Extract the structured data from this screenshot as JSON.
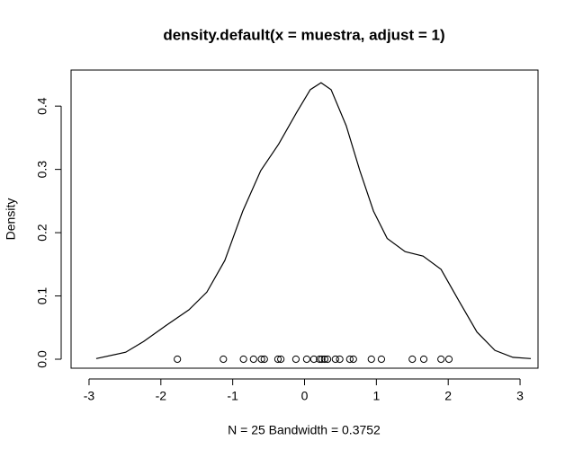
{
  "chart_data": {
    "type": "line",
    "title": "density.default(x = muestra, adjust = 1)",
    "xlabel": "N = 25   Bandwidth = 0.3752",
    "ylabel": "Density",
    "x": [
      -2.9,
      -2.49,
      -2.24,
      -1.92,
      -1.61,
      -1.36,
      -1.11,
      -0.86,
      -0.61,
      -0.36,
      -0.11,
      0.08,
      0.23,
      0.37,
      0.58,
      0.77,
      0.96,
      1.15,
      1.4,
      1.65,
      1.9,
      2.15,
      2.4,
      2.65,
      2.9,
      3.15
    ],
    "values": [
      0.001,
      0.011,
      0.028,
      0.054,
      0.078,
      0.106,
      0.156,
      0.234,
      0.298,
      0.34,
      0.39,
      0.426,
      0.437,
      0.426,
      0.369,
      0.298,
      0.234,
      0.191,
      0.17,
      0.163,
      0.142,
      0.092,
      0.043,
      0.014,
      0.003,
      0.001
    ],
    "color": "#000000",
    "points": {
      "x": [
        -1.77,
        -1.13,
        -0.85,
        -0.71,
        -0.6,
        -0.56,
        -0.37,
        -0.33,
        -0.12,
        0.03,
        0.13,
        0.21,
        0.24,
        0.28,
        0.32,
        0.43,
        0.49,
        0.63,
        0.68,
        0.93,
        1.07,
        1.5,
        1.66,
        1.9,
        2.01
      ],
      "values": [
        0,
        0,
        0,
        0,
        0,
        0,
        0,
        0,
        0,
        0,
        0,
        0,
        0,
        0,
        0,
        0,
        0,
        0,
        0,
        0,
        0,
        0,
        0,
        0,
        0
      ]
    },
    "xlim": [
      -3.25,
      3.25
    ],
    "ylim": [
      -0.0142,
      0.457
    ],
    "xticks": [
      -3,
      -2,
      -1,
      0,
      1,
      2,
      3
    ],
    "yticks": [
      {
        "value": 0,
        "label": "0.0"
      },
      0.1,
      0.2,
      0.3,
      0.4
    ]
  }
}
